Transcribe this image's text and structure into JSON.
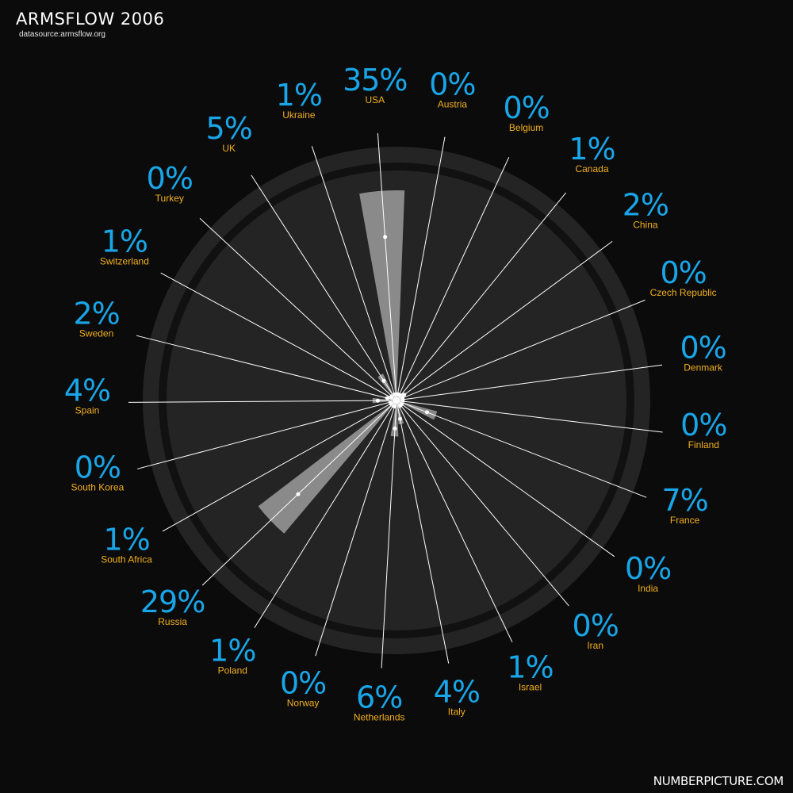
{
  "header": {
    "title": "ARMSFLOW 2006",
    "subtitle": "datasource:armsflow.org"
  },
  "footer": {
    "credit": "NUMBERPICTURE.COM"
  },
  "colors": {
    "background": "#0b0b0b",
    "ring": "#242424",
    "ring_gap": "#111111",
    "wedge": "#8a8a8a",
    "spoke": "#ffffff",
    "percent": "#19a6e8",
    "country": "#f2b01e"
  },
  "chart_data": {
    "type": "radial-bar",
    "unit": "%",
    "countries": [
      "USA",
      "Austria",
      "Belgium",
      "Canada",
      "China",
      "Czech Republic",
      "Denmark",
      "Finland",
      "France",
      "India",
      "Iran",
      "Israel",
      "Italy",
      "Netherlands",
      "Norway",
      "Poland",
      "Russia",
      "South Africa",
      "South Korea",
      "Spain",
      "Sweden",
      "Switzerland",
      "Turkey",
      "UK",
      "Ukraine"
    ],
    "values": [
      35,
      0,
      0,
      1,
      2,
      0,
      0,
      0,
      7,
      0,
      0,
      1,
      4,
      6,
      0,
      1,
      29,
      1,
      0,
      4,
      2,
      1,
      0,
      5,
      1
    ],
    "labels": [
      "35%",
      "0%",
      "0%",
      "1%",
      "2%",
      "0%",
      "0%",
      "0%",
      "7%",
      "0%",
      "0%",
      "1%",
      "4%",
      "6%",
      "0%",
      "1%",
      "29%",
      "1%",
      "0%",
      "4%",
      "2%",
      "1%",
      "0%",
      "5%",
      "1%"
    ]
  }
}
